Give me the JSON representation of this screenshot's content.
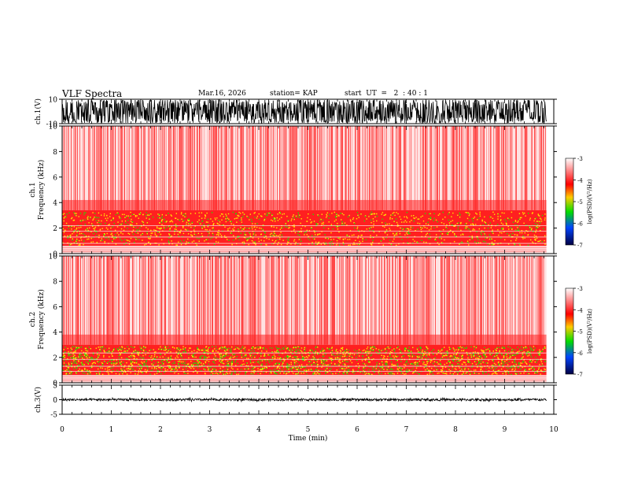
{
  "header": {
    "title": "VLF Spectra",
    "date": "Mar.16, 2026",
    "station": "station= KAP",
    "start": "start  UT  =   2  : 40 : 1"
  },
  "colors": {
    "bg": "#ffffff",
    "trace": "#000000",
    "spec_red": "#ff2020",
    "spec_yellow": "#ffee00",
    "spec_green": "#22dd00"
  },
  "colorbar": {
    "label": "log(PSD)(V²/Hz)",
    "ticks": [
      "-3",
      "-4",
      "-5",
      "-6",
      "-7"
    ],
    "values": [
      -3,
      -4,
      -5,
      -6,
      -7
    ]
  },
  "chart_data": [
    {
      "id": "ch1-waveform",
      "type": "line",
      "title": "VLF Spectra",
      "ylabel": "ch.1(V)",
      "ylim": [
        -10,
        10
      ],
      "yticks": [
        "10",
        "-10"
      ],
      "xlim": [
        0,
        10
      ],
      "trace_xmax": 9.85,
      "description_values": {
        "typical_amplitude_max": 10,
        "typical_amplitude_min": -10
      }
    },
    {
      "id": "ch1-spectrogram",
      "type": "heatmap",
      "ylabel": "Frequency (kHz)",
      "channel": "ch.1",
      "ylim": [
        0,
        10
      ],
      "yticks": [
        "0",
        "2",
        "4",
        "6",
        "8",
        "10"
      ],
      "xlim": [
        0,
        10
      ],
      "data_xmax": 9.85,
      "bands": [
        {
          "from_khz": 0.6,
          "to_khz": 3.4,
          "level": "high"
        },
        {
          "from_khz": 3.4,
          "to_khz": 10,
          "level": "medium"
        }
      ]
    },
    {
      "id": "ch2-spectrogram",
      "type": "heatmap",
      "ylabel": "Frequency (kHz)",
      "channel": "ch.2",
      "ylim": [
        0,
        10
      ],
      "yticks": [
        "0",
        "2",
        "4",
        "6",
        "8",
        "10"
      ],
      "xlim": [
        0,
        10
      ],
      "data_xmax": 9.85,
      "bands": [
        {
          "from_khz": 0.6,
          "to_khz": 3.0,
          "level": "high"
        },
        {
          "from_khz": 3.0,
          "to_khz": 10,
          "level": "medium"
        }
      ]
    },
    {
      "id": "ch3-waveform",
      "type": "line",
      "ylabel": "ch.3(V)",
      "ylim": [
        -5,
        5
      ],
      "yticks": [
        "5",
        "0",
        "-5"
      ],
      "xlim": [
        0,
        10
      ],
      "trace_xmax": 9.85,
      "description_values": {
        "typical_amplitude_max": 0.4,
        "typical_amplitude_min": -0.4
      }
    }
  ],
  "xaxis": {
    "label": "Time (min)",
    "ticks": [
      "0",
      "1",
      "2",
      "3",
      "4",
      "5",
      "6",
      "7",
      "8",
      "9",
      "10"
    ]
  }
}
